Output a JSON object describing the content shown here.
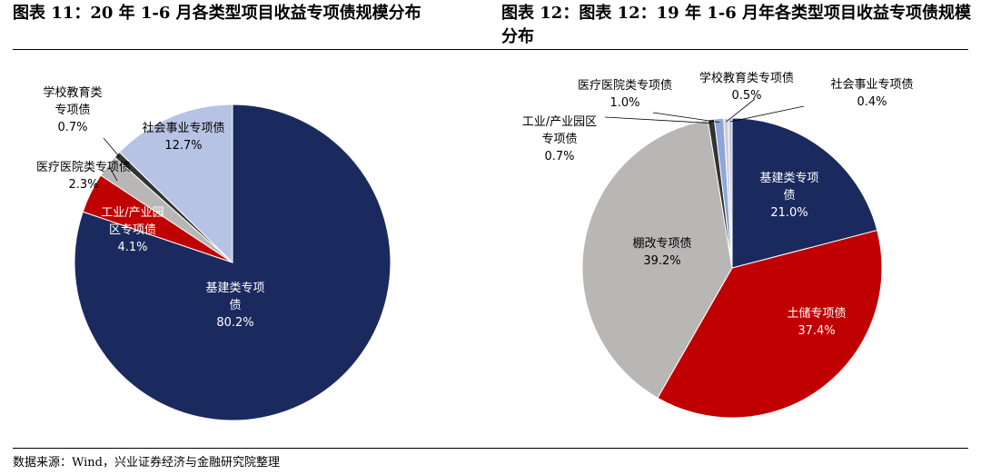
{
  "titles": {
    "left": "图表 11：20 年 1-6 月各类型项目收益专项债规模分布",
    "right": "图表 12：图表 12：19 年 1-6 月年各类型项目收益专项债规模分布"
  },
  "source": "数据来源：Wind，兴业证券经济与金融研究院整理",
  "chart_data": [
    {
      "type": "pie",
      "title": "图表 11：20 年 1-6 月各类型项目收益专项债规模分布",
      "slices": [
        {
          "name": "基建类专项债",
          "value": 80.2,
          "label": "80.2%",
          "color": "#1b2a5e"
        },
        {
          "name": "工业/产业园区专项债",
          "value": 4.1,
          "label": "4.1%",
          "color": "#c00000"
        },
        {
          "name": "医疗医院类专项债",
          "value": 2.3,
          "label": "2.3%",
          "color": "#b9b6b6"
        },
        {
          "name": "学校教育类专项债",
          "value": 0.7,
          "label": "0.7%",
          "color": "#333333"
        },
        {
          "name": "社会事业专项债",
          "value": 12.7,
          "label": "12.7%",
          "color": "#b7c3e4"
        }
      ]
    },
    {
      "type": "pie",
      "title": "图表 12：图表 12：19 年 1-6 月年各类型项目收益专项债规模分布",
      "slices": [
        {
          "name": "基建类专项债",
          "value": 21.0,
          "label": "21.0%",
          "color": "#1b2a5e"
        },
        {
          "name": "土储专项债",
          "value": 37.4,
          "label": "37.4%",
          "color": "#c00000"
        },
        {
          "name": "棚改专项债",
          "value": 39.2,
          "label": "39.2%",
          "color": "#b9b6b6"
        },
        {
          "name": "工业/产业园区专项债",
          "value": 0.7,
          "label": "0.7%",
          "color": "#333333"
        },
        {
          "name": "医疗医院类专项债",
          "value": 1.0,
          "label": "1.0%",
          "color": "#8ea6d8"
        },
        {
          "name": "学校教育类专项债",
          "value": 0.5,
          "label": "0.5%",
          "color": "#d0d0d0"
        },
        {
          "name": "社会事业专项债",
          "value": 0.4,
          "label": "0.4%",
          "color": "#bcc8e8"
        }
      ]
    }
  ]
}
